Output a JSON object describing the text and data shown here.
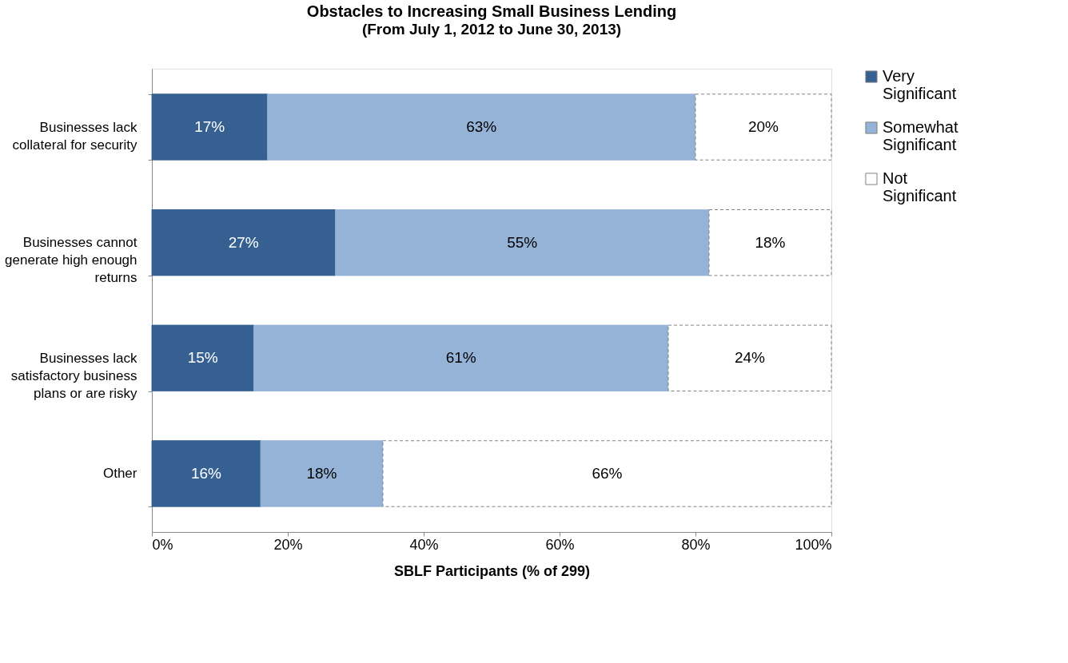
{
  "chart_data": {
    "type": "bar",
    "orientation": "horizontal",
    "stacked": true,
    "title": "Obstacles to Increasing Small Business Lending",
    "subtitle": "(From July 1, 2012 to June 30, 2013)",
    "xlabel": "SBLF Participants (% of 299)",
    "categories": [
      "Businesses lack collateral for security",
      "Businesses cannot generate high enough returns",
      "Businesses lack satisfactory business plans or are risky",
      "Other"
    ],
    "series": [
      {
        "name": "Very Significant",
        "color": "#366092",
        "values": [
          17,
          27,
          15,
          16
        ],
        "value_labels": [
          "17%",
          "27%",
          "15%",
          "16%"
        ]
      },
      {
        "name": "Somewhat Significant",
        "color": "#95b3d7",
        "values": [
          63,
          55,
          61,
          18
        ],
        "value_labels": [
          "63%",
          "55%",
          "61%",
          "18%"
        ]
      },
      {
        "name": "Not Significant",
        "color": "#ffffff",
        "line_style": "dashed",
        "values": [
          20,
          18,
          24,
          66
        ],
        "value_labels": [
          "20%",
          "18%",
          "24%",
          "66%"
        ]
      }
    ],
    "xlim": [
      0,
      100
    ],
    "xticks": [
      {
        "value": 0,
        "label": "0%"
      },
      {
        "value": 20,
        "label": "20%"
      },
      {
        "value": 40,
        "label": "40%"
      },
      {
        "value": 60,
        "label": "60%"
      },
      {
        "value": 80,
        "label": "80%"
      },
      {
        "value": 100,
        "label": "100%"
      }
    ],
    "grid": false,
    "legend": "right"
  }
}
